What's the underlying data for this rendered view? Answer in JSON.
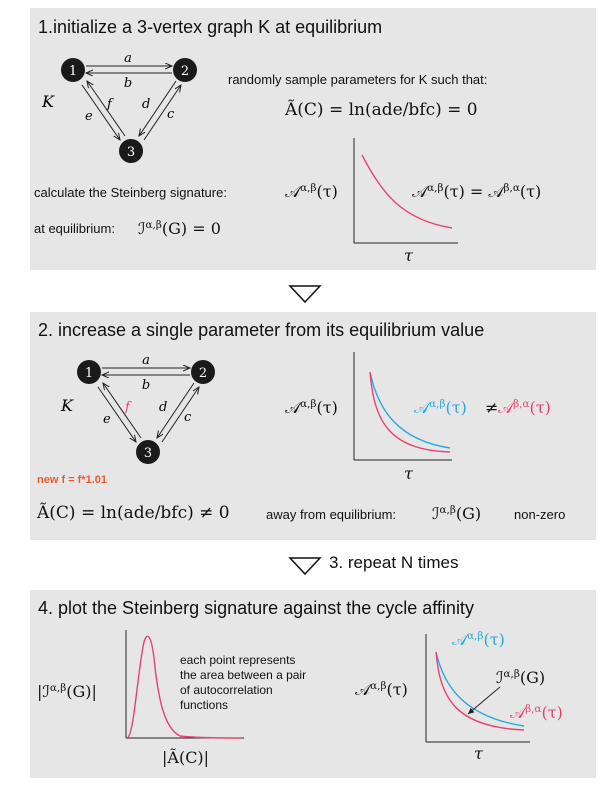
{
  "panel1": {
    "title": "1.initialize a 3-vertex graph K at equilibrium",
    "graph": {
      "nodes": [
        "1",
        "2",
        "3"
      ],
      "edges": [
        "a",
        "b",
        "c",
        "d",
        "e",
        "f"
      ],
      "name": "K"
    },
    "sample_text": "randomly sample parameters for K such that:",
    "affinity_eq": "Ã(C) = ln(ade/bfc) = 0",
    "calc_text": "calculate the Steinberg signature:",
    "acf_label": "𝒜^{α,β}(τ)",
    "equality": "𝒜^{α,β}(τ) = 𝒜^{β,α}(τ)",
    "eq_label": "at equilibrium:",
    "eq_value": "ℐ^{α,β}(G) = 0",
    "axis_x": "τ"
  },
  "panel2": {
    "title": "2. increase a single parameter from its equilibrium value",
    "graph": {
      "nodes": [
        "1",
        "2",
        "3"
      ],
      "edges": [
        "a",
        "b",
        "c",
        "d",
        "e",
        "f"
      ],
      "name": "K",
      "changed_edge": "f"
    },
    "new_f": "new f = f*1.01",
    "acf_label": "𝒜^{α,β}(τ)",
    "blue_label": "𝒜^{α,β}(τ)",
    "neq": "≠",
    "red_label": "𝒜^{β,α}(τ)",
    "axis_x": "τ",
    "affinity_neq": "Ã(C) = ln(ade/bfc) ≠ 0",
    "away_label": "away from equilibrium:",
    "away_value": "ℐ^{α,β}(G)",
    "nonzero": "non-zero"
  },
  "step3": {
    "label": "3. repeat N times"
  },
  "panel4": {
    "title": "4. plot the Steinberg signature against the cycle affinity",
    "ylabel": "|ℐ^{α,β}(G)|",
    "xlabel": "|Ã(C)|",
    "note": [
      "each point represents",
      "the area between a pair",
      "of autocorrelation",
      "functions"
    ],
    "acf_label": "𝒜^{α,β}(τ)",
    "blue_label": "𝒜^{α,β}(τ)",
    "sig_label": "ℐ^{α,β}(G)",
    "red_label": "𝒜^{β,α}(τ)",
    "axis_x": "τ"
  },
  "colors": {
    "panel_bg": "#e6e6e6",
    "red": "#e8436f",
    "blue": "#2ba6de",
    "orange": "#f05a28",
    "node": "#1a1a1a"
  }
}
